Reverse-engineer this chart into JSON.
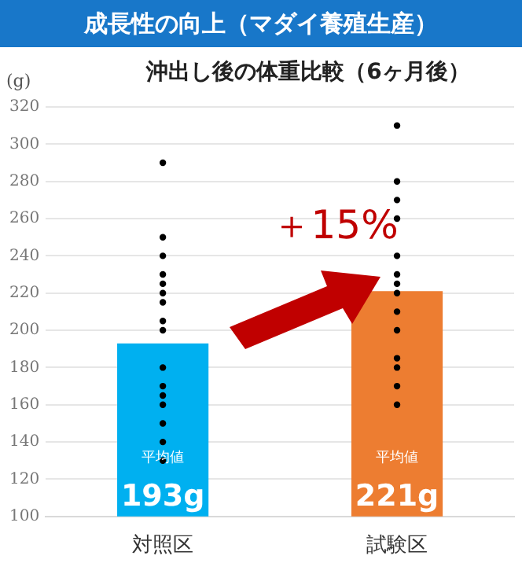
{
  "chart_data": {
    "type": "bar",
    "title": "成長性の向上（マダイ養殖生産）",
    "subtitle": "沖出し後の体重比較（6ヶ月後）",
    "ylabel": "(g)",
    "categories": [
      "対照区",
      "試験区"
    ],
    "series": [
      {
        "colors": [
          "#00b0f0",
          "#ed7d31"
        ],
        "values": [
          193,
          221
        ],
        "value_labels": [
          "193g",
          "221g"
        ]
      },
      {
        "type": "scatter",
        "color": "#000000",
        "x": [
          "対照区",
          "対照区",
          "対照区",
          "対照区",
          "対照区",
          "対照区",
          "対照区",
          "対照区",
          "対照区",
          "対照区",
          "対照区",
          "対照区",
          "対照区",
          "対照区",
          "対照区",
          "対照区"
        ],
        "values": [
          290,
          250,
          240,
          230,
          225,
          220,
          215,
          205,
          200,
          180,
          170,
          165,
          160,
          150,
          140,
          130
        ]
      },
      {
        "type": "scatter",
        "color": "#000000",
        "x": [
          "試験区",
          "試験区",
          "試験区",
          "試験区",
          "試験区",
          "試験区",
          "試験区",
          "試験区",
          "試験区",
          "試験区",
          "試験区",
          "試験区",
          "試験区",
          "試験区"
        ],
        "values": [
          310,
          280,
          270,
          260,
          240,
          230,
          225,
          220,
          210,
          200,
          185,
          180,
          170,
          160
        ]
      }
    ],
    "marker": "circle",
    "ylim": [
      100,
      320
    ],
    "yticks": [
      100,
      120,
      140,
      160,
      180,
      200,
      220,
      240,
      260,
      280,
      300,
      320
    ],
    "grid": "y",
    "legend": false,
    "annotations": [
      "平均値",
      "平均値",
      "＋15%"
    ]
  }
}
